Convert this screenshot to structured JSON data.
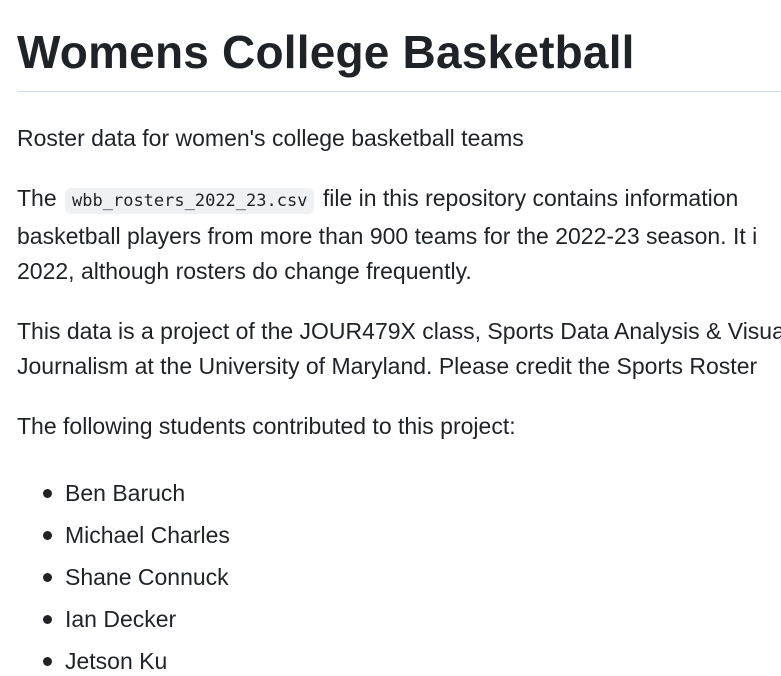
{
  "readme": {
    "title": "Womens College Basketball",
    "intro": "Roster data for women's college basketball teams",
    "file_paragraph": {
      "before_code": "The ",
      "code": "wbb_rosters_2022_23.csv",
      "line1_after_code": " file in this repository contains information",
      "line2": "basketball players from more than 900 teams for the 2022-23 season. It i",
      "line3": "2022, although rosters do change frequently."
    },
    "class_paragraph": {
      "line1": "This data is a project of the JOUR479X class, Sports Data Analysis & Visua",
      "line2": "Journalism at the University of Maryland. Please credit the Sports Roster"
    },
    "students_intro": "The following students contributed to this project:",
    "students": [
      "Ben Baruch",
      "Michael Charles",
      "Shane Connuck",
      "Ian Decker",
      "Jetson Ku"
    ]
  }
}
